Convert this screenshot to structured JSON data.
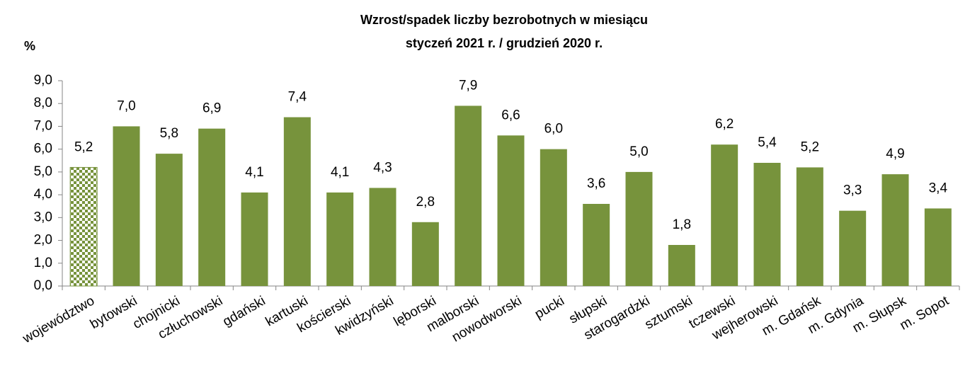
{
  "chart_data": {
    "type": "bar",
    "title": [
      "Wzrost/spadek liczby bezrobotnych w miesiącu",
      "styczeń 2021 r. / grudzień 2020 r."
    ],
    "y_label": "%",
    "categories": [
      "województwo",
      "bytowski",
      "chojnicki",
      "człuchowski",
      "gdański",
      "kartuski",
      "kościerski",
      "kwidzyński",
      "lęborski",
      "malborski",
      "nowodworski",
      "pucki",
      "słupski",
      "starogardzki",
      "sztumski",
      "tczewski",
      "wejherowski",
      "m. Gdańsk",
      "m. Gdynia",
      "m. Słupsk",
      "m. Sopot"
    ],
    "values": [
      5.2,
      7.0,
      5.8,
      6.9,
      4.1,
      7.4,
      4.1,
      4.3,
      2.8,
      7.9,
      6.6,
      6.0,
      3.6,
      5.0,
      1.8,
      6.2,
      5.4,
      5.2,
      3.3,
      4.9,
      3.4
    ],
    "value_labels": [
      "5,2",
      "7,0",
      "5,8",
      "6,9",
      "4,1",
      "7,4",
      "4,1",
      "4,3",
      "2,8",
      "7,9",
      "6,6",
      "6,0",
      "3,6",
      "5,0",
      "1,8",
      "6,2",
      "5,4",
      "5,2",
      "3,3",
      "4,9",
      "3,4"
    ],
    "color": "#77933c",
    "highlight_index": 0,
    "highlight_style": "checkered",
    "ylim": [
      0,
      9
    ],
    "yticks": [
      {
        "value": 0,
        "label": "0,0"
      },
      {
        "value": 1,
        "label": "1,0"
      },
      {
        "value": 2,
        "label": "2,0"
      },
      {
        "value": 3,
        "label": "3,0"
      },
      {
        "value": 4,
        "label": "4,0"
      },
      {
        "value": 5,
        "label": "5,0"
      },
      {
        "value": 6,
        "label": "6,0"
      },
      {
        "value": 7,
        "label": "7,0"
      },
      {
        "value": 8,
        "label": "8,0"
      },
      {
        "value": 9,
        "label": "9,0"
      }
    ],
    "grid": false
  }
}
